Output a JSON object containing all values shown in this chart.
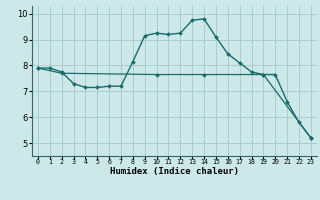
{
  "xlabel": "Humidex (Indice chaleur)",
  "ylabel": "",
  "xlim": [
    -0.5,
    23.5
  ],
  "ylim": [
    4.5,
    10.3
  ],
  "yticks": [
    5,
    6,
    7,
    8,
    9,
    10
  ],
  "xticks": [
    0,
    1,
    2,
    3,
    4,
    5,
    6,
    7,
    8,
    9,
    10,
    11,
    12,
    13,
    14,
    15,
    16,
    17,
    18,
    19,
    20,
    21,
    22,
    23
  ],
  "background_color": "#cce8e8",
  "grid_color": "#aacccc",
  "line_color": "#1a6b6b",
  "line1_x": [
    0,
    1,
    2,
    3,
    4,
    5,
    6,
    7,
    8,
    9,
    10,
    11,
    12,
    13,
    14,
    15,
    16,
    17,
    18,
    19,
    20,
    21,
    22,
    23
  ],
  "line1_y": [
    7.9,
    7.9,
    7.75,
    7.3,
    7.15,
    7.15,
    7.2,
    7.2,
    8.15,
    9.15,
    9.25,
    9.2,
    9.25,
    9.75,
    9.8,
    9.1,
    8.45,
    8.1,
    7.75,
    7.65,
    7.65,
    6.6,
    5.8,
    5.2
  ],
  "line2_x": [
    0,
    2,
    10,
    14,
    19,
    23
  ],
  "line2_y": [
    7.9,
    7.7,
    7.65,
    7.65,
    7.65,
    5.2
  ],
  "xlabel_fontsize": 6.5,
  "ytick_fontsize": 6,
  "xtick_fontsize": 4.8
}
